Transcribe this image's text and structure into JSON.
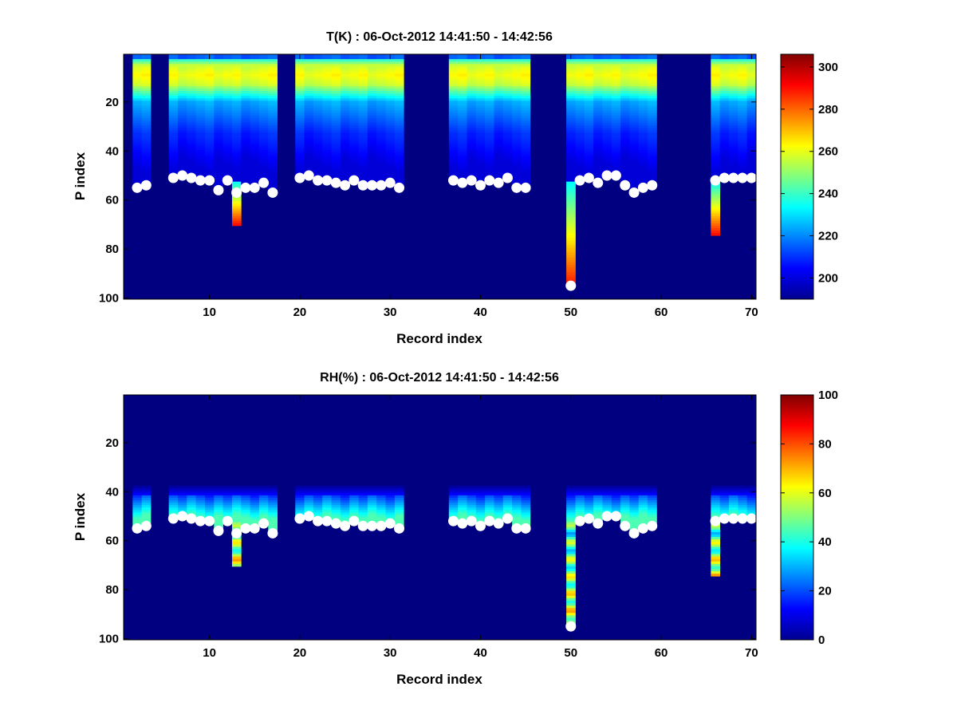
{
  "chart_data": [
    {
      "type": "heatmap",
      "title": "T(K) : 06-Oct-2012 14:41:50 - 14:42:56",
      "xlabel": "Record index",
      "ylabel": "P index",
      "xlim": [
        0.5,
        70.5
      ],
      "ylim": [
        0.5,
        100.5
      ],
      "y_reversed": true,
      "x_ticks": [
        10,
        20,
        30,
        40,
        50,
        60,
        70
      ],
      "y_ticks": [
        20,
        40,
        60,
        80,
        100
      ],
      "colormap": "jet",
      "clim": [
        190,
        306
      ],
      "colorbar_ticks": [
        200,
        220,
        240,
        260,
        280,
        300
      ],
      "background_value": 190,
      "columns": [
        2,
        3,
        6,
        7,
        8,
        9,
        10,
        11,
        12,
        13,
        14,
        15,
        16,
        17,
        20,
        21,
        22,
        23,
        24,
        25,
        26,
        27,
        28,
        29,
        30,
        31,
        37,
        38,
        39,
        40,
        41,
        42,
        43,
        44,
        45,
        50,
        51,
        52,
        53,
        54,
        55,
        56,
        57,
        58,
        59,
        66,
        67,
        68,
        69,
        70
      ],
      "profile_bottom": [
        55,
        54,
        51,
        50,
        51,
        52,
        52,
        56,
        52,
        70,
        55,
        55,
        53,
        57,
        51,
        50,
        52,
        52,
        53,
        54,
        52,
        54,
        54,
        54,
        53,
        55,
        52,
        53,
        52,
        54,
        52,
        53,
        51,
        55,
        55,
        95,
        52,
        51,
        53,
        50,
        50,
        54,
        57,
        55,
        54,
        74,
        51,
        51,
        51,
        51
      ],
      "surface_marker_p": [
        55,
        54,
        51,
        50,
        51,
        52,
        52,
        56,
        52,
        57,
        55,
        55,
        53,
        57,
        51,
        50,
        52,
        52,
        53,
        54,
        52,
        54,
        54,
        54,
        53,
        55,
        52,
        53,
        52,
        54,
        52,
        53,
        51,
        55,
        55,
        95,
        52,
        51,
        53,
        50,
        50,
        54,
        57,
        55,
        54,
        52,
        51,
        51,
        51,
        51
      ],
      "grid": false,
      "colorbar": "right"
    },
    {
      "type": "heatmap",
      "title": "RH(%) : 06-Oct-2012 14:41:50 - 14:42:56",
      "xlabel": "Record index",
      "ylabel": "P index",
      "xlim": [
        0.5,
        70.5
      ],
      "ylim": [
        0.5,
        100.5
      ],
      "y_reversed": true,
      "x_ticks": [
        10,
        20,
        30,
        40,
        50,
        60,
        70
      ],
      "y_ticks": [
        20,
        40,
        60,
        80,
        100
      ],
      "colormap": "jet",
      "clim": [
        0,
        100
      ],
      "colorbar_ticks": [
        0,
        20,
        40,
        60,
        80,
        100
      ],
      "background_value": 0,
      "columns": [
        2,
        3,
        6,
        7,
        8,
        9,
        10,
        11,
        12,
        13,
        14,
        15,
        16,
        17,
        20,
        21,
        22,
        23,
        24,
        25,
        26,
        27,
        28,
        29,
        30,
        31,
        37,
        38,
        39,
        40,
        41,
        42,
        43,
        44,
        45,
        50,
        51,
        52,
        53,
        54,
        55,
        56,
        57,
        58,
        59,
        66,
        67,
        68,
        69,
        70
      ],
      "profile_bottom": [
        55,
        54,
        51,
        50,
        51,
        52,
        52,
        56,
        52,
        70,
        55,
        55,
        53,
        57,
        51,
        50,
        52,
        52,
        53,
        54,
        52,
        54,
        54,
        54,
        53,
        55,
        52,
        53,
        52,
        54,
        52,
        53,
        51,
        55,
        55,
        95,
        52,
        51,
        53,
        50,
        50,
        54,
        57,
        55,
        54,
        74,
        51,
        51,
        51,
        51
      ],
      "surface_marker_p": [
        55,
        54,
        51,
        50,
        51,
        52,
        52,
        56,
        52,
        57,
        55,
        55,
        53,
        57,
        51,
        50,
        52,
        52,
        53,
        54,
        52,
        54,
        54,
        54,
        53,
        55,
        52,
        53,
        52,
        54,
        52,
        53,
        51,
        55,
        55,
        95,
        52,
        51,
        53,
        50,
        50,
        54,
        57,
        55,
        54,
        52,
        51,
        51,
        51,
        51
      ],
      "grid": false,
      "colorbar": "right"
    }
  ]
}
